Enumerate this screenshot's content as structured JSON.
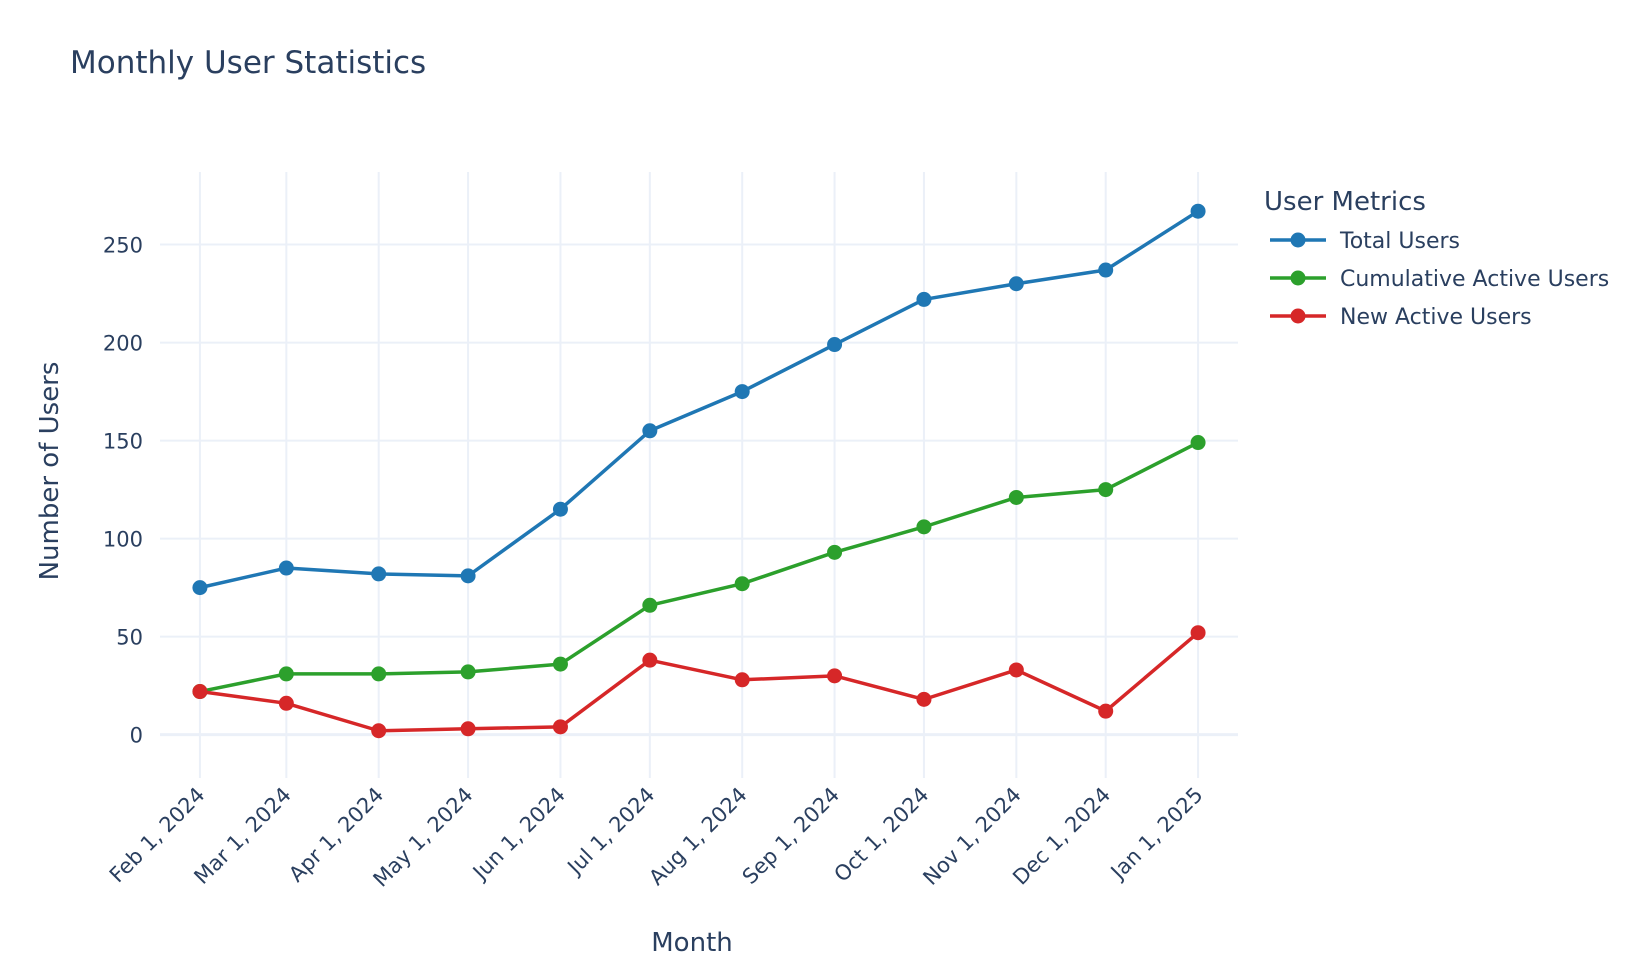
{
  "chart_data": {
    "type": "line",
    "title": "Monthly User Statistics",
    "xlabel": "Month",
    "ylabel": "Number of Users",
    "x": [
      "Feb 1, 2024",
      "Mar 1, 2024",
      "Apr 1, 2024",
      "May 1, 2024",
      "Jun 1, 2024",
      "Jul 1, 2024",
      "Aug 1, 2024",
      "Sep 1, 2024",
      "Oct 1, 2024",
      "Nov 1, 2024",
      "Dec 1, 2024",
      "Jan 1, 2025"
    ],
    "x_dates": [
      "2024-02-01",
      "2024-03-01",
      "2024-04-01",
      "2024-05-01",
      "2024-06-01",
      "2024-07-01",
      "2024-08-01",
      "2024-09-01",
      "2024-10-01",
      "2024-11-01",
      "2024-12-01",
      "2025-01-01"
    ],
    "ylim": [
      -17,
      287
    ],
    "yticks": [
      0,
      50,
      100,
      150,
      200,
      250
    ],
    "grid": true,
    "legend": {
      "title": "User Metrics",
      "position": "top-right, outside plot"
    },
    "series": [
      {
        "name": "Total Users",
        "color": "#1f77b4",
        "values": [
          75,
          85,
          82,
          81,
          115,
          155,
          175,
          199,
          222,
          230,
          237,
          267
        ]
      },
      {
        "name": "Cumulative Active Users",
        "color": "#2ca02c",
        "values": [
          22,
          31,
          31,
          32,
          36,
          66,
          77,
          93,
          106,
          121,
          125,
          149
        ]
      },
      {
        "name": "New Active Users",
        "color": "#d62728",
        "values": [
          22,
          16,
          2,
          3,
          4,
          38,
          28,
          30,
          18,
          33,
          12,
          52
        ]
      }
    ]
  }
}
